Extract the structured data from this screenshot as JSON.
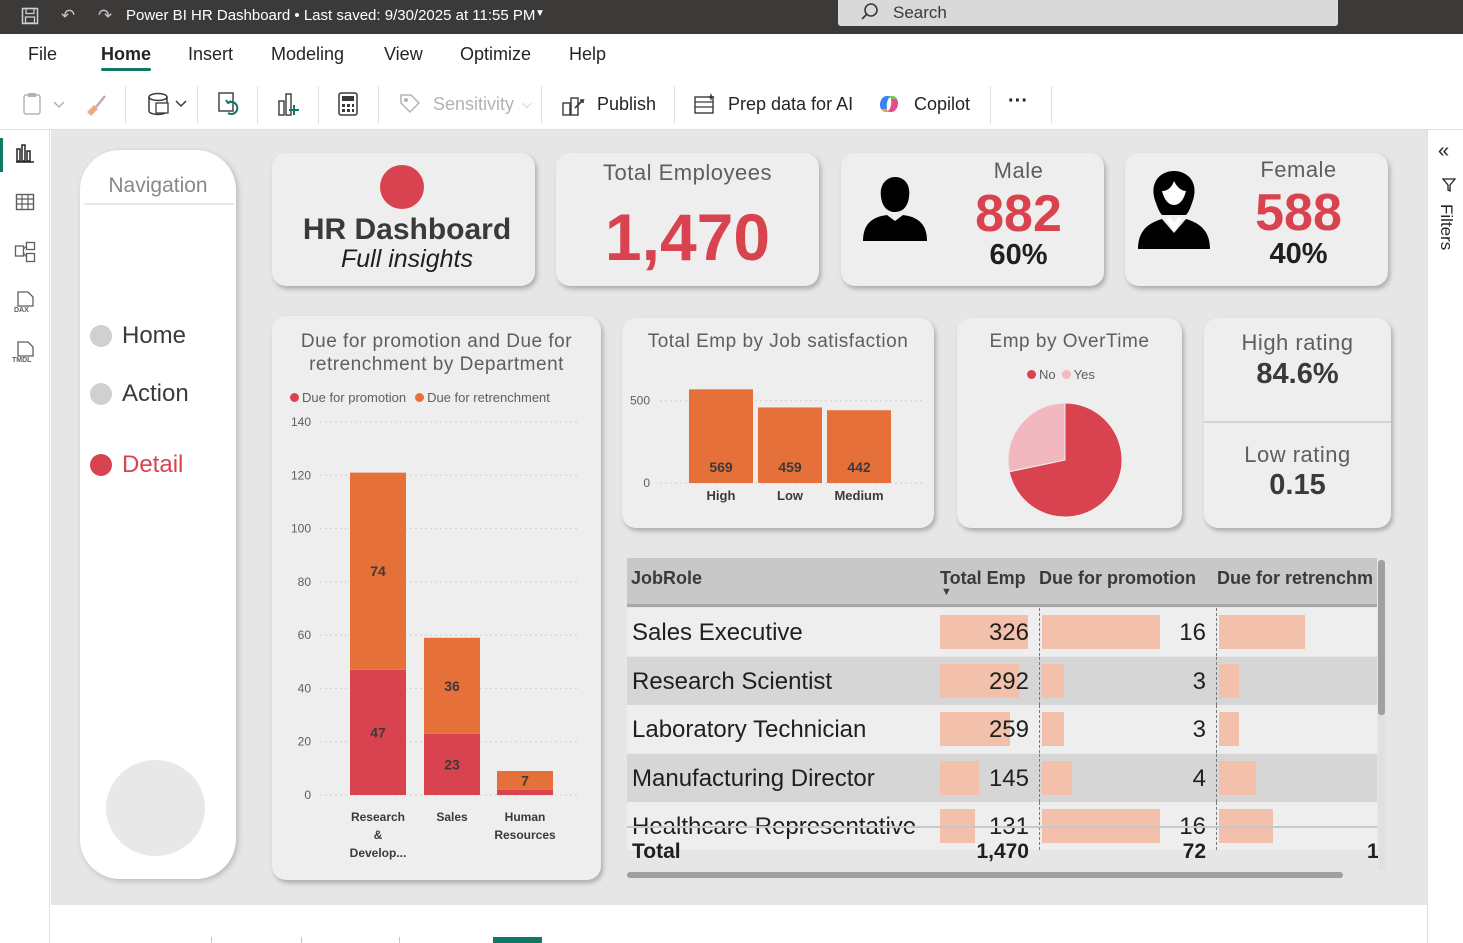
{
  "titlebar": {
    "title": "Power BI HR Dashboard",
    "saved": "• Last saved: 9/30/2025 at 11:55 PM",
    "search": "Search"
  },
  "menu": [
    "File",
    "Home",
    "Insert",
    "Modeling",
    "View",
    "Optimize",
    "Help"
  ],
  "ribbon": {
    "sensitivity": "Sensitivity",
    "publish": "Publish",
    "prep_data": "Prep data for AI",
    "copilot": "Copilot",
    "more": "···"
  },
  "rightpane": {
    "filters": "Filters"
  },
  "nav": {
    "title": "Navigation",
    "items": [
      "Home",
      "Action",
      "Detail"
    ]
  },
  "title_card": {
    "title": "HR Dashboard",
    "subtitle": "Full insights"
  },
  "kpi": {
    "total_label": "Total Employees",
    "total_value": "1,470",
    "male_label": "Male",
    "male_value": "882",
    "male_pct": "60%",
    "female_label": "Female",
    "female_value": "588",
    "female_pct": "40%",
    "high_label": "High rating",
    "high_value": "84.6%",
    "low_label": "Low rating",
    "low_value": "0.15"
  },
  "colors": {
    "accent": "#d9434f",
    "orange": "#e5703a",
    "pink": "#f2b8bf",
    "table_bar": "#f2c0ab",
    "canvas": "#e6e6e6"
  },
  "chart_data": [
    {
      "type": "bar",
      "stacked": true,
      "title": "Due for promotion and Due for retrenchment by Department",
      "categories": [
        "Research & Develop...",
        "Sales",
        "Human Resources"
      ],
      "series": [
        {
          "name": "Due for promotion",
          "values": [
            47,
            23,
            2
          ]
        },
        {
          "name": "Due for retrenchment",
          "values": [
            74,
            36,
            7
          ]
        }
      ],
      "ylim": [
        0,
        140
      ],
      "yticks": [
        "0",
        "20",
        "40",
        "60",
        "80",
        "100",
        "120",
        "140"
      ],
      "data_labels": [
        [
          "47",
          "23",
          ""
        ],
        [
          "74",
          "36",
          "7"
        ]
      ],
      "legend": "top"
    },
    {
      "type": "bar",
      "title": "Total Emp by Job satisfaction",
      "categories": [
        "High",
        "Low",
        "Medium"
      ],
      "values": [
        569,
        459,
        442
      ],
      "labels": [
        "569",
        "459",
        "442"
      ],
      "yticks": [
        "0",
        "500"
      ],
      "ylim": [
        0,
        650
      ]
    },
    {
      "type": "pie",
      "title": "Emp by OverTime",
      "categories": [
        "No",
        "Yes"
      ],
      "values": [
        1054,
        416
      ],
      "legend": "top"
    }
  ],
  "table": {
    "columns": [
      "JobRole",
      "Total Emp",
      "Due for promotion",
      "Due for retrenchm"
    ],
    "rows": [
      {
        "role": "Sales Executive",
        "total": "326",
        "promo": "16",
        "tot_v": 326,
        "promo_v": 16,
        "retr_v": 30
      },
      {
        "role": "Research Scientist",
        "total": "292",
        "promo": "3",
        "tot_v": 292,
        "promo_v": 3,
        "retr_v": 7
      },
      {
        "role": "Laboratory Technician",
        "total": "259",
        "promo": "3",
        "tot_v": 259,
        "promo_v": 3,
        "retr_v": 7
      },
      {
        "role": "Manufacturing Director",
        "total": "145",
        "promo": "4",
        "tot_v": 145,
        "promo_v": 4,
        "retr_v": 13
      },
      {
        "role": "Healthcare Representative",
        "total": "131",
        "promo": "16",
        "tot_v": 131,
        "promo_v": 16,
        "retr_v": 19
      }
    ],
    "total_label": "Total",
    "total_emp": "1,470",
    "total_promo": "72",
    "total_retr": "1"
  }
}
